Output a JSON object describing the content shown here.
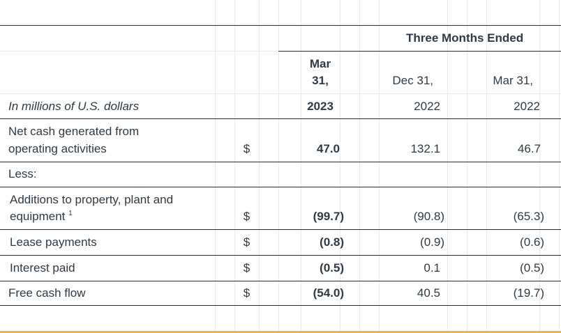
{
  "table": {
    "header": {
      "group_label": "Three Months Ended",
      "units_label": "In millions of U.S. dollars",
      "col1": {
        "line1": "Mar",
        "line2": "31,",
        "year": "2023"
      },
      "col2": {
        "line1": "Dec 31,",
        "year": "2022"
      },
      "col3": {
        "line1": "Mar 31,",
        "year": "2022"
      }
    },
    "rows": [
      {
        "label_line1": "Net cash generated from",
        "label_line2": "operating activities",
        "currency": "$",
        "v1": "47.0",
        "v2": "132.1",
        "v3": "46.7"
      },
      {
        "label": "Less:"
      },
      {
        "label_line1": "Additions to property, plant and",
        "label_line2": "equipment",
        "footnote": "1",
        "currency": "$",
        "v1": "(99.7)",
        "v2": "(90.8)",
        "v3": "(65.3)"
      },
      {
        "label": "Lease payments",
        "currency": "$",
        "v1": "(0.8)",
        "v2": "(0.9)",
        "v3": "(0.6)"
      },
      {
        "label": "Interest paid",
        "currency": "$",
        "v1": "(0.5)",
        "v2": "0.1",
        "v3": "(0.5)"
      },
      {
        "label": "Free cash flow",
        "currency": "$",
        "v1": "(54.0)",
        "v2": "40.5",
        "v3": "(19.7)"
      }
    ]
  }
}
